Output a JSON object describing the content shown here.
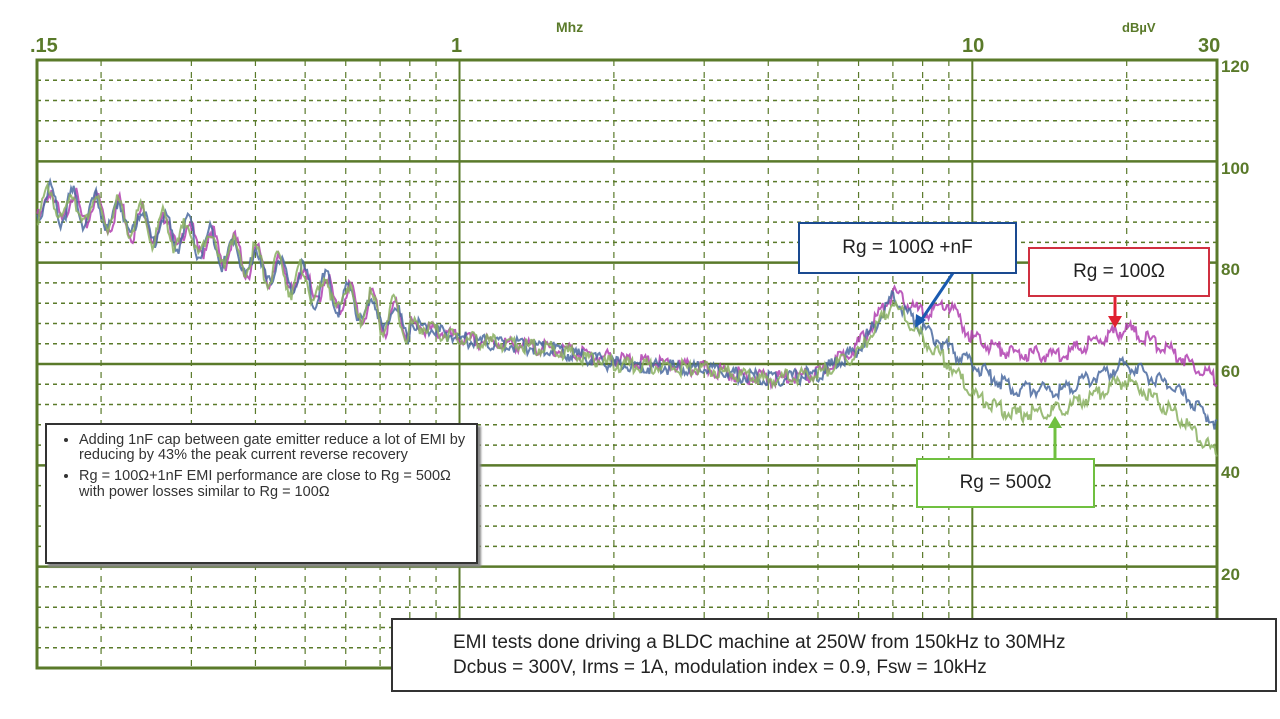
{
  "chart_data": {
    "type": "line",
    "title": "",
    "xlabel": "Mhz",
    "ylabel": "dBµV",
    "xscale": "log",
    "xlim": [
      0.15,
      30
    ],
    "ylim": [
      0,
      120
    ],
    "x_ticks": [
      ".15",
      "1",
      "10",
      "30"
    ],
    "y_ticks": [
      "120",
      "100",
      "80",
      "60",
      "40",
      "20"
    ],
    "grid": true,
    "x": [
      0.15,
      0.2,
      0.3,
      0.5,
      0.7,
      1,
      1.5,
      2,
      3,
      4,
      5,
      6,
      7,
      8,
      9,
      10,
      12,
      15,
      20,
      25,
      30
    ],
    "series": [
      {
        "name": "Rg = 100Ω",
        "color": "#b040b0",
        "values": [
          92,
          90,
          85,
          76,
          70,
          65,
          63,
          61,
          59,
          57,
          58,
          64,
          74,
          70,
          72,
          65,
          62,
          62,
          67,
          62,
          57
        ]
      },
      {
        "name": "Rg = 100Ω +nF",
        "color": "#4a6aa0",
        "values": [
          92,
          90,
          85,
          76,
          70,
          65,
          63,
          60,
          59,
          57,
          58,
          63,
          73,
          67,
          63,
          60,
          55,
          55,
          60,
          55,
          48
        ]
      },
      {
        "name": "Rg = 500Ω",
        "color": "#8ab060",
        "values": [
          92,
          90,
          85,
          76,
          70,
          65,
          63,
          60,
          59,
          57,
          58,
          62,
          72,
          65,
          60,
          54,
          50,
          51,
          57,
          50,
          42
        ]
      }
    ]
  },
  "labels": {
    "nf": "Rg = 100Ω +nF",
    "r100": "Rg = 100Ω",
    "r500": "Rg = 500Ω"
  },
  "notes": [
    "Adding 1nF cap between gate emitter reduce a lot of EMI by reducing by 43% the peak current reverse recovery",
    "Rg = 100Ω+1nF EMI performance are close to Rg = 500Ω with power losses similar to Rg = 100Ω"
  ],
  "caption": {
    "line1": "EMI tests done driving a BLDC machine at 250W from 150kHz to 30MHz",
    "line2": "Dcbus = 300V, Irms = 1A, modulation index = 0.9, Fsw = 10kHz"
  }
}
